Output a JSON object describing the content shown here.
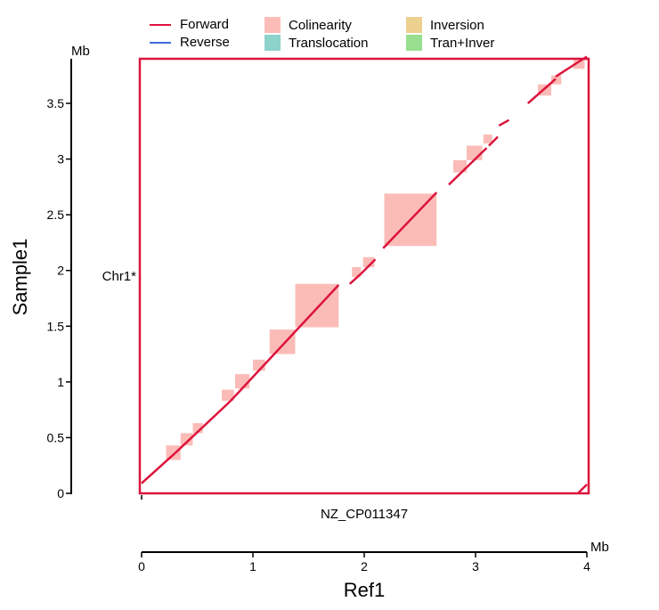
{
  "legend": {
    "items": [
      {
        "label": "Forward",
        "kind": "line",
        "color": "#dc143c"
      },
      {
        "label": "Reverse",
        "kind": "line",
        "color": "#4169e1"
      },
      {
        "label": "Colinearity",
        "kind": "box",
        "color": "#fbbcb8"
      },
      {
        "label": "Translocation",
        "kind": "box",
        "color": "#8dd3cc"
      },
      {
        "label": "Inversion",
        "kind": "box",
        "color": "#ecd08f"
      },
      {
        "label": "Tran+Inver",
        "kind": "box",
        "color": "#98e08f"
      }
    ]
  },
  "chart_data": {
    "type": "scatter",
    "title": "",
    "xlabel": "Ref1",
    "ylabel": "Sample1",
    "x_unit": "Mb",
    "y_unit": "Mb",
    "xlim": [
      0,
      4
    ],
    "ylim": [
      0,
      3.9
    ],
    "x_ticks": [
      0,
      1,
      2,
      3,
      4
    ],
    "x_tick_labels": [
      "0",
      "1",
      "2",
      "3",
      "4"
    ],
    "y_ticks": [
      0,
      0.5,
      1,
      1.5,
      2,
      2.5,
      3,
      3.5
    ],
    "y_tick_labels": [
      "0",
      "0.5",
      "1",
      "1.5",
      "2",
      "2.5",
      "3",
      "3.5"
    ],
    "x_chromosome": "NZ_CP011347",
    "y_chromosome": "Chr1*",
    "colors": {
      "forward": "#dc143c",
      "colinearity": "#fbbcb8",
      "frame": "#dc143c"
    },
    "forward_segments": [
      [
        [
          0.0,
          0.09
        ],
        [
          0.3,
          0.36
        ]
      ],
      [
        [
          0.3,
          0.36
        ],
        [
          0.8,
          0.83
        ]
      ],
      [
        [
          0.8,
          0.83
        ],
        [
          1.77,
          1.87
        ]
      ],
      [
        [
          1.87,
          1.88
        ],
        [
          1.97,
          1.97
        ]
      ],
      [
        [
          1.97,
          1.97
        ],
        [
          2.1,
          2.1
        ]
      ],
      [
        [
          2.17,
          2.2
        ],
        [
          2.65,
          2.7
        ]
      ],
      [
        [
          2.76,
          2.77
        ],
        [
          3.1,
          3.1
        ]
      ],
      [
        [
          3.12,
          3.12
        ],
        [
          3.2,
          3.2
        ]
      ],
      [
        [
          3.21,
          3.3
        ],
        [
          3.3,
          3.35
        ]
      ],
      [
        [
          3.47,
          3.5
        ],
        [
          3.72,
          3.72
        ]
      ],
      [
        [
          3.72,
          3.74
        ],
        [
          4.0,
          3.92
        ]
      ],
      [
        [
          3.92,
          0.0
        ],
        [
          4.0,
          0.08
        ]
      ]
    ],
    "colinearity_blocks": [
      {
        "x": [
          0.22,
          0.35
        ],
        "y": [
          0.3,
          0.43
        ]
      },
      {
        "x": [
          0.35,
          0.46
        ],
        "y": [
          0.43,
          0.54
        ]
      },
      {
        "x": [
          0.46,
          0.55
        ],
        "y": [
          0.54,
          0.63
        ]
      },
      {
        "x": [
          0.72,
          0.83
        ],
        "y": [
          0.83,
          0.93
        ]
      },
      {
        "x": [
          0.84,
          0.97
        ],
        "y": [
          0.94,
          1.07
        ]
      },
      {
        "x": [
          1.0,
          1.11
        ],
        "y": [
          1.1,
          1.2
        ]
      },
      {
        "x": [
          1.15,
          1.38
        ],
        "y": [
          1.25,
          1.47
        ]
      },
      {
        "x": [
          1.38,
          1.77
        ],
        "y": [
          1.49,
          1.88
        ]
      },
      {
        "x": [
          1.89,
          1.97
        ],
        "y": [
          1.94,
          2.03
        ]
      },
      {
        "x": [
          1.99,
          2.09
        ],
        "y": [
          2.03,
          2.12
        ]
      },
      {
        "x": [
          2.18,
          2.65
        ],
        "y": [
          2.22,
          2.69
        ]
      },
      {
        "x": [
          2.8,
          2.92
        ],
        "y": [
          2.88,
          2.99
        ]
      },
      {
        "x": [
          2.92,
          3.06
        ],
        "y": [
          2.99,
          3.12
        ]
      },
      {
        "x": [
          3.07,
          3.15
        ],
        "y": [
          3.14,
          3.22
        ]
      },
      {
        "x": [
          3.56,
          3.68
        ],
        "y": [
          3.57,
          3.67
        ]
      },
      {
        "x": [
          3.68,
          3.77
        ],
        "y": [
          3.67,
          3.75
        ]
      },
      {
        "x": [
          3.88,
          3.98
        ],
        "y": [
          3.81,
          3.9
        ]
      }
    ]
  }
}
